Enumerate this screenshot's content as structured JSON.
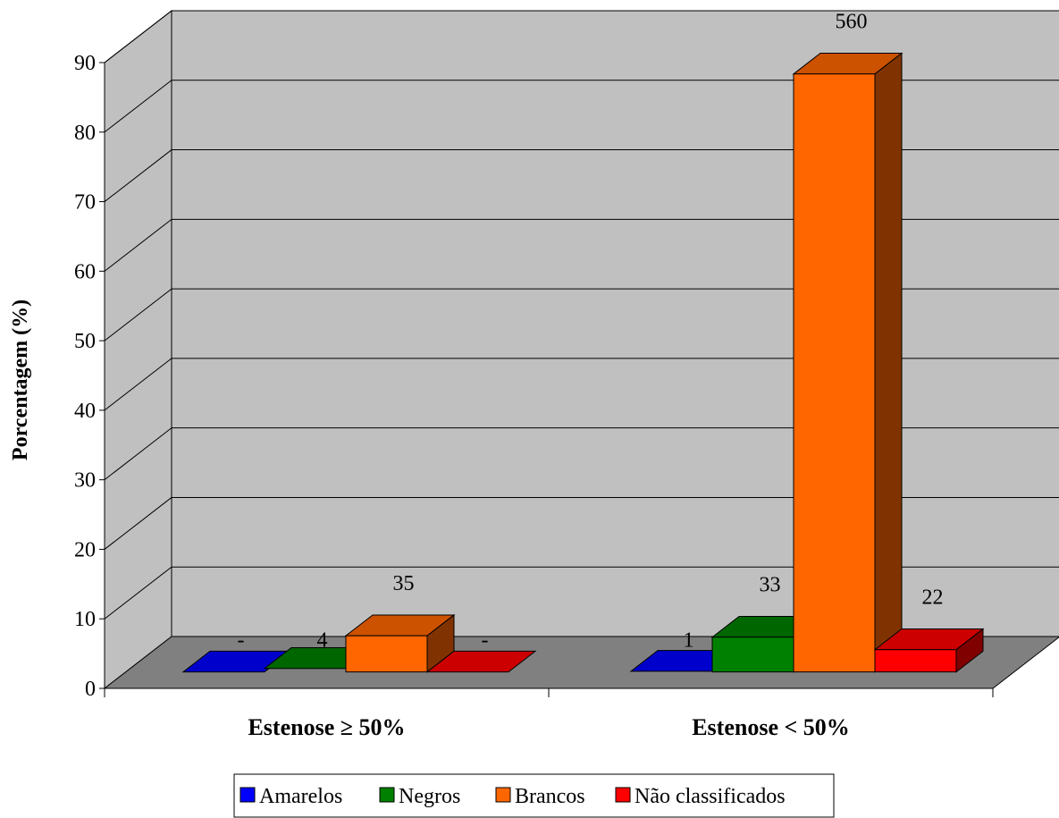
{
  "chart_data": {
    "type": "bar",
    "three_d": true,
    "ylabel": "Porcentagem (%)",
    "xlabel": "",
    "ylim": [
      0,
      90
    ],
    "yticks": [
      "0",
      "10",
      "20",
      "30",
      "40",
      "50",
      "60",
      "70",
      "80",
      "90"
    ],
    "grid": true,
    "legend_position": "bottom",
    "categories": [
      "Estenose ≥ 50%",
      "Estenose < 50%"
    ],
    "series": [
      {
        "name": "Amarelos",
        "color": "#0000ff",
        "values": [
          0,
          0.1
        ],
        "labels": [
          "-",
          "1"
        ]
      },
      {
        "name": "Negros",
        "color": "#008000",
        "values": [
          0.5,
          5.0
        ],
        "labels": [
          "4",
          "33"
        ]
      },
      {
        "name": "Brancos",
        "color": "#ff6600",
        "values": [
          5.2,
          86.0
        ],
        "labels": [
          "35",
          "560"
        ]
      },
      {
        "name": "Não classificados",
        "color": "#ff0000",
        "values": [
          0,
          3.2
        ],
        "labels": [
          "-",
          "22"
        ]
      }
    ]
  }
}
